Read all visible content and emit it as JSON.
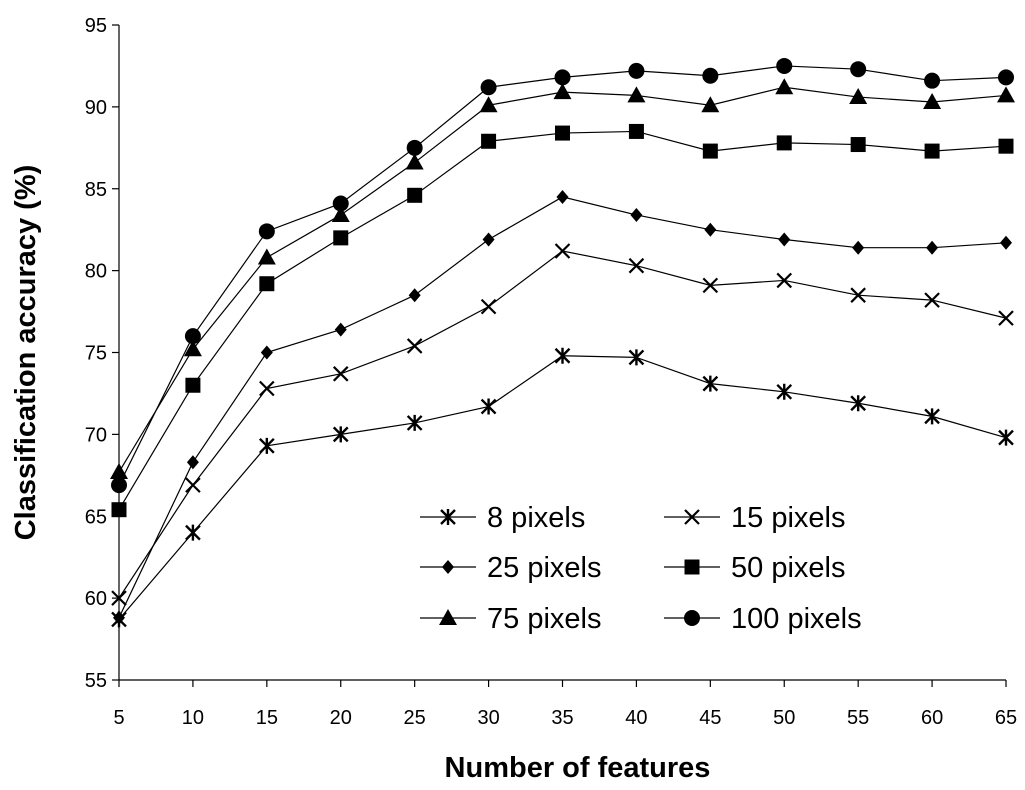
{
  "chart_data": {
    "type": "line",
    "title": "",
    "xlabel": "Number of features",
    "ylabel": "Classification accuracy (%)",
    "x": [
      5,
      10,
      15,
      20,
      25,
      30,
      35,
      40,
      45,
      50,
      55,
      60,
      65
    ],
    "xlim": [
      5,
      65
    ],
    "ylim": [
      55,
      95
    ],
    "yticks": [
      55,
      60,
      65,
      70,
      75,
      80,
      85,
      90,
      95
    ],
    "grid": false,
    "legend_position": "bottom-right",
    "series": [
      {
        "name": "8 pixels",
        "marker": "star",
        "values": [
          58.7,
          64.0,
          69.3,
          70.0,
          70.7,
          71.7,
          74.8,
          74.7,
          73.1,
          72.6,
          71.9,
          71.1,
          69.8
        ]
      },
      {
        "name": "15 pixels",
        "marker": "x",
        "values": [
          60.0,
          66.9,
          72.8,
          73.7,
          75.4,
          77.8,
          81.2,
          80.3,
          79.1,
          79.4,
          78.5,
          78.2,
          77.1
        ]
      },
      {
        "name": "25 pixels",
        "marker": "diamond",
        "values": [
          58.8,
          68.3,
          75.0,
          76.4,
          78.5,
          81.9,
          84.5,
          83.4,
          82.5,
          81.9,
          81.4,
          81.4,
          81.7
        ]
      },
      {
        "name": "50 pixels",
        "marker": "square",
        "values": [
          65.4,
          73.0,
          79.2,
          82.0,
          84.6,
          87.9,
          88.4,
          88.5,
          87.3,
          87.8,
          87.7,
          87.3,
          87.6
        ]
      },
      {
        "name": "75 pixels",
        "marker": "triangle",
        "values": [
          67.7,
          75.2,
          80.8,
          83.4,
          86.6,
          90.1,
          90.9,
          90.7,
          90.1,
          91.2,
          90.6,
          90.3,
          90.7
        ]
      },
      {
        "name": "100 pixels",
        "marker": "circle",
        "values": [
          66.9,
          76.0,
          82.4,
          84.1,
          87.5,
          91.2,
          91.8,
          92.2,
          91.9,
          92.5,
          92.3,
          91.6,
          91.8
        ]
      }
    ]
  }
}
